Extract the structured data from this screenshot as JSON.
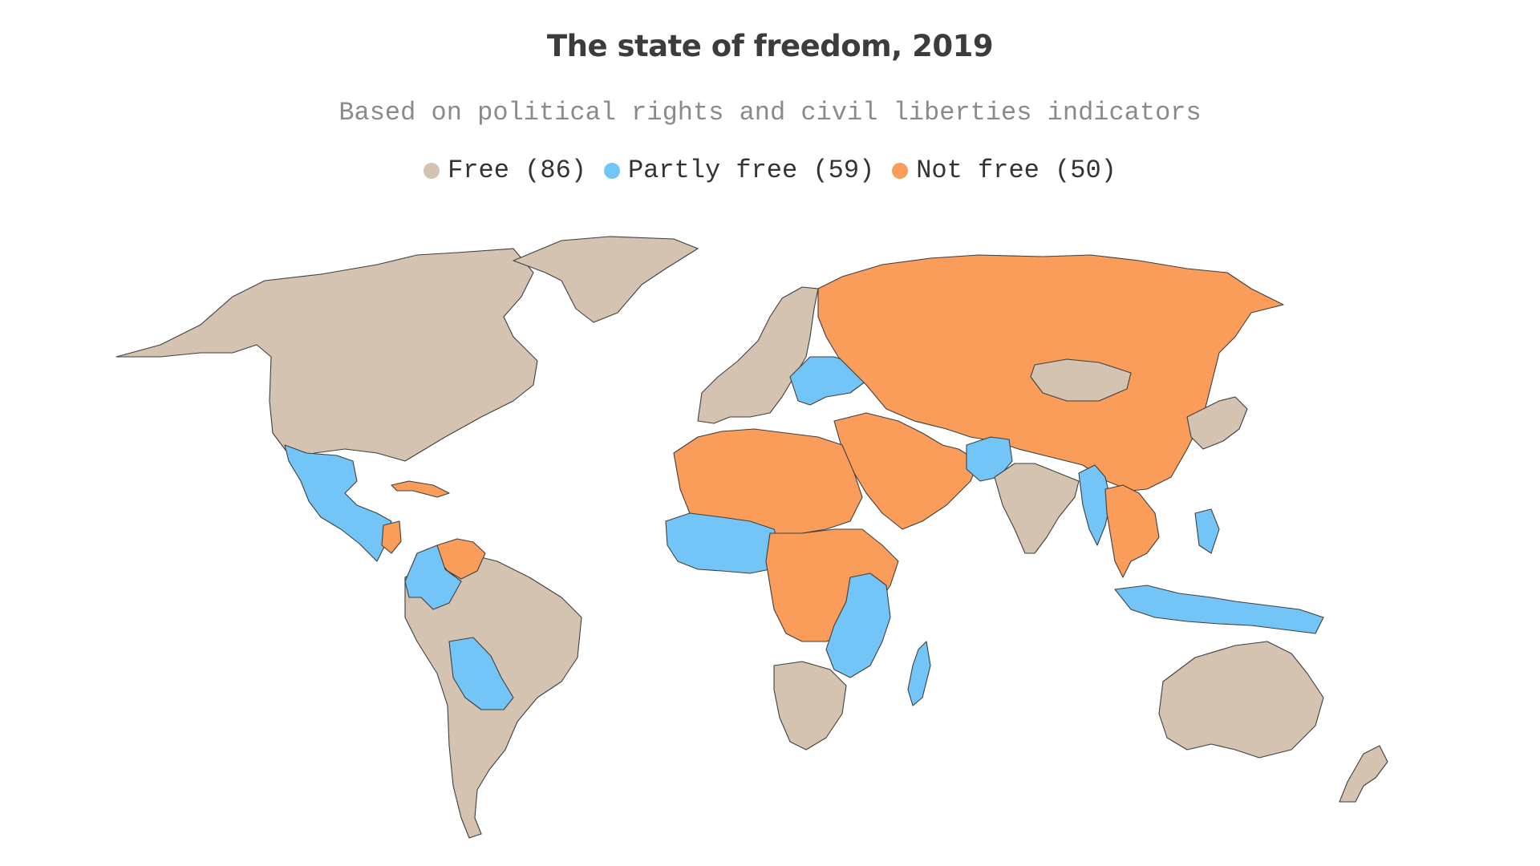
{
  "title": "The state of freedom, 2019",
  "subtitle": "Based on political rights and civil liberties indicators",
  "legend": [
    {
      "label": "Free (86)",
      "color": "#d3c3b0",
      "category": "free"
    },
    {
      "label": "Partly free (59)",
      "color": "#74c5f7",
      "category": "partly_free"
    },
    {
      "label": "Not free (50)",
      "color": "#fa9c5a",
      "category": "not_free"
    }
  ],
  "colors": {
    "free": "#d3c3b0",
    "partly_free": "#74c5f7",
    "not_free": "#fa9c5a",
    "border": "#3f3f3f"
  },
  "regions": [
    {
      "name": "north-america",
      "category": "free"
    },
    {
      "name": "greenland",
      "category": "free"
    },
    {
      "name": "mexico-central-america",
      "category": "partly_free"
    },
    {
      "name": "cuba",
      "category": "not_free"
    },
    {
      "name": "nicaragua",
      "category": "not_free"
    },
    {
      "name": "venezuela",
      "category": "not_free"
    },
    {
      "name": "colombia",
      "category": "partly_free"
    },
    {
      "name": "bolivia",
      "category": "partly_free"
    },
    {
      "name": "south-america",
      "category": "free"
    },
    {
      "name": "western-europe",
      "category": "free"
    },
    {
      "name": "ukraine-balkans",
      "category": "partly_free"
    },
    {
      "name": "russia-central-asia-china",
      "category": "not_free"
    },
    {
      "name": "mongolia",
      "category": "free"
    },
    {
      "name": "middle-east",
      "category": "not_free"
    },
    {
      "name": "pakistan",
      "category": "partly_free"
    },
    {
      "name": "india",
      "category": "free"
    },
    {
      "name": "myanmar-bangladesh",
      "category": "partly_free"
    },
    {
      "name": "southeast-asia",
      "category": "not_free"
    },
    {
      "name": "japan-korea",
      "category": "free"
    },
    {
      "name": "indonesia-philippines",
      "category": "partly_free"
    },
    {
      "name": "north-africa",
      "category": "not_free"
    },
    {
      "name": "west-africa",
      "category": "partly_free"
    },
    {
      "name": "central-africa",
      "category": "not_free"
    },
    {
      "name": "east-africa",
      "category": "partly_free"
    },
    {
      "name": "southern-africa",
      "category": "free"
    },
    {
      "name": "madagascar",
      "category": "partly_free"
    },
    {
      "name": "australia",
      "category": "free"
    },
    {
      "name": "new-zealand",
      "category": "free"
    }
  ]
}
